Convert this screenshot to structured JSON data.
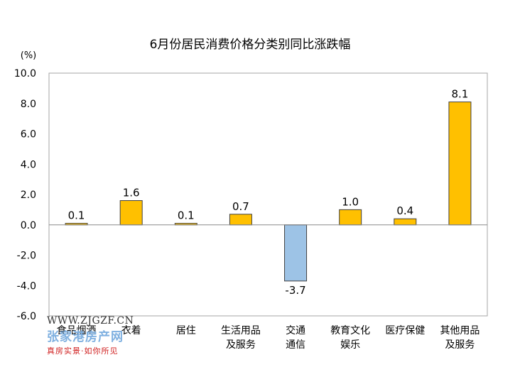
{
  "chart_data": {
    "type": "bar",
    "title": "6月份居民消费价格分类别同比涨跌幅",
    "ylabel": "(%)",
    "ylim": [
      -6.0,
      10.0
    ],
    "yticks": [
      "10.0",
      "8.0",
      "6.0",
      "4.0",
      "2.0",
      "0.0",
      "-2.0",
      "-4.0",
      "-6.0"
    ],
    "categories": [
      [
        "食品烟酒"
      ],
      [
        "衣着"
      ],
      [
        "居住"
      ],
      [
        "生活用品",
        "及服务"
      ],
      [
        "交通",
        "通信"
      ],
      [
        "教育文化",
        "娱乐"
      ],
      [
        "医疗保健"
      ],
      [
        "其他用品",
        "及服务"
      ]
    ],
    "values": [
      0.1,
      1.6,
      0.1,
      0.7,
      -3.7,
      1.0,
      0.4,
      8.1
    ],
    "labels": [
      "0.1",
      "1.6",
      "0.1",
      "0.7",
      "-3.7",
      "1.0",
      "0.4",
      "8.1"
    ],
    "colors": {
      "positive": "#FFC000",
      "negative": "#9DC3E6",
      "border": "#404040",
      "frame": "#A6A6A6"
    }
  },
  "watermark": {
    "url": "WWW.ZJGZF.CN",
    "brand": "张家港房产网",
    "slogan": "真房实景·如你所见"
  }
}
